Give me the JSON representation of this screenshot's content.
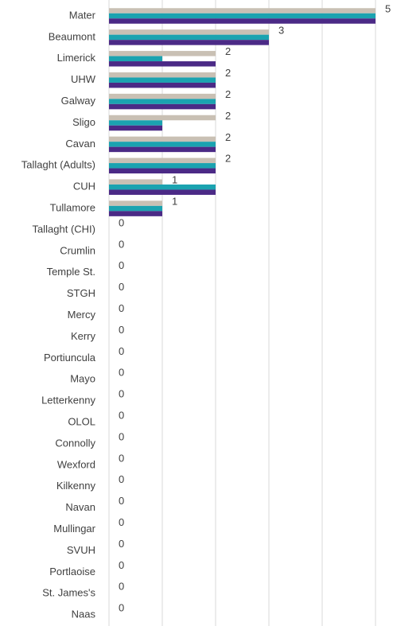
{
  "chart_data": {
    "type": "hbar",
    "categories": [
      "Mater",
      "Beaumont",
      "Limerick",
      "UHW",
      "Galway",
      "Sligo",
      "Cavan",
      "Tallaght (Adults)",
      "CUH",
      "Tullamore",
      "Tallaght (CHI)",
      "Crumlin",
      "Temple St.",
      "STGH",
      "Mercy",
      "Kerry",
      "Portiuncula",
      "Mayo",
      "Letterkenny",
      "OLOL",
      "Connolly",
      "Wexford",
      "Kilkenny",
      "Navan",
      "Mullingar",
      "SVUH",
      "Portlaoise",
      "St. James's",
      "Naas"
    ],
    "series": [
      {
        "color": "#c9c0b4",
        "values": [
          5,
          3,
          2,
          2,
          2,
          2,
          2,
          2,
          1,
          1,
          0,
          0,
          0,
          0,
          0,
          0,
          0,
          0,
          0,
          0,
          0,
          0,
          0,
          0,
          0,
          0,
          0,
          0,
          0
        ]
      },
      {
        "color": "#1ba3b0",
        "values": [
          5,
          3,
          1,
          2,
          2,
          1,
          2,
          2,
          2,
          1,
          0,
          0,
          0,
          0,
          0,
          0,
          0,
          0,
          0,
          0,
          0,
          0,
          0,
          0,
          0,
          0,
          0,
          0,
          0
        ]
      },
      {
        "color": "#4b2a86",
        "values": [
          5,
          3,
          2,
          2,
          2,
          1,
          2,
          2,
          2,
          1,
          0,
          0,
          0,
          0,
          0,
          0,
          0,
          0,
          0,
          0,
          0,
          0,
          0,
          0,
          0,
          0,
          0,
          0,
          0
        ]
      }
    ],
    "xlim": [
      0,
      5
    ],
    "xticks": [
      0,
      1,
      2,
      3,
      4,
      5
    ],
    "grid": true
  }
}
